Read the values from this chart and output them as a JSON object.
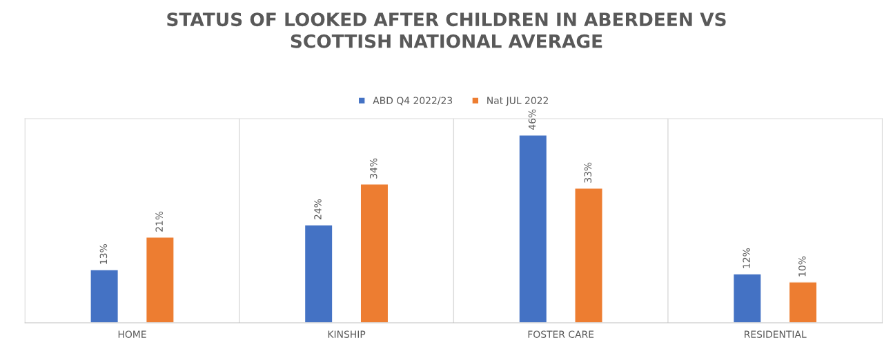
{
  "chart_data": {
    "type": "bar",
    "title": "STATUS OF LOOKED AFTER CHILDREN IN ABERDEEN VS\nSCOTTISH NATIONAL AVERAGE",
    "categories": [
      "HOME",
      "KINSHIP",
      "FOSTER CARE",
      "RESIDENTIAL"
    ],
    "series": [
      {
        "name": "ABD Q4 2022/23",
        "color": "#4472c4",
        "values": [
          13,
          24,
          46,
          12
        ],
        "value_labels": [
          "13%",
          "24%",
          "46%",
          "12%"
        ]
      },
      {
        "name": "Nat JUL 2022",
        "color": "#ed7d31",
        "values": [
          21,
          34,
          33,
          10
        ],
        "value_labels": [
          "21%",
          "34%",
          "33%",
          "10%"
        ]
      }
    ],
    "ylim": [
      0,
      50
    ],
    "tick_labels": "x",
    "grid": "x",
    "legend": "top"
  }
}
